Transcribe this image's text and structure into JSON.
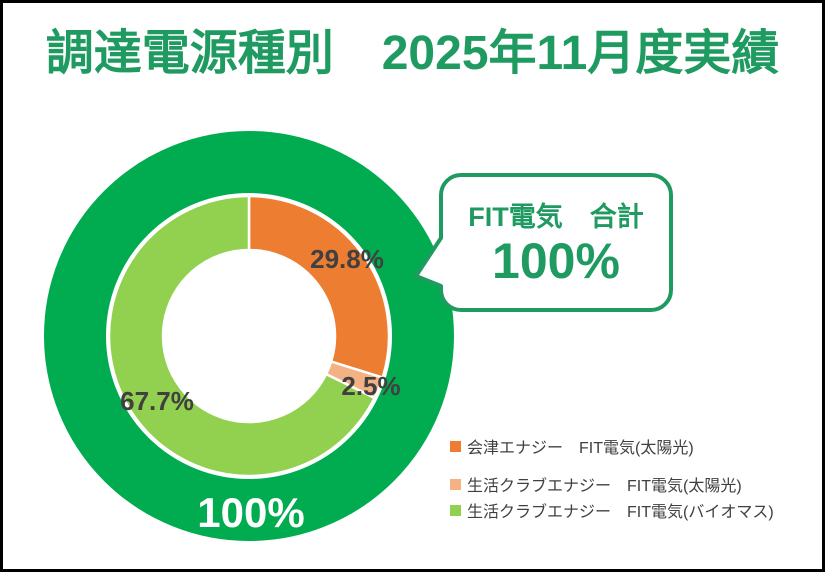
{
  "title": "調達電源種別　2025年11月度実績",
  "callout": {
    "title": "FIT電気　合計",
    "value": "100%"
  },
  "chart_data": {
    "type": "pie",
    "subtype": "double-donut",
    "title": "調達電源種別　2025年11月度実績",
    "legend_position": "right-bottom",
    "outer_ring": {
      "label": "100%",
      "value": 100,
      "color": "#00ac4f",
      "description": "FIT電気　合計 100%"
    },
    "segments": [
      {
        "name": "会津エナジー　FIT電気(太陽光)",
        "value": 29.8,
        "label": "29.8%",
        "color": "#ed7d31"
      },
      {
        "name": "生活クラブエナジー　FIT電気(太陽光)",
        "value": 2.5,
        "label": "2.5%",
        "color": "#f4b183"
      },
      {
        "name": "生活クラブエナジー　FIT電気(バイオマス)",
        "value": 67.7,
        "label": "67.7%",
        "color": "#92d04f"
      }
    ],
    "label_color": "#404040",
    "accent_green": "#1f9b62"
  },
  "legend": {
    "items": [
      {
        "label": "会津エナジー　FIT電気(太陽光)",
        "color": "#ed7d31"
      },
      {
        "label": "生活クラブエナジー　FIT電気(太陽光)",
        "color": "#f4b183"
      },
      {
        "label": "生活クラブエナジー　FIT電気(バイオマス)",
        "color": "#92d04f"
      }
    ]
  }
}
